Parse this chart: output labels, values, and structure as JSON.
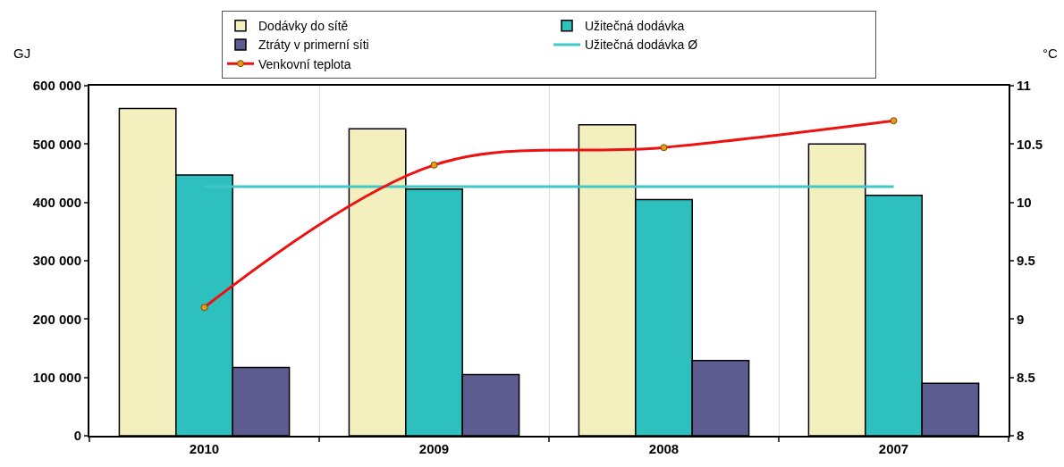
{
  "chart_data": {
    "type": "bar",
    "ylabel": "GJ",
    "y2label": "°C",
    "categories": [
      "2010",
      "2009",
      "2008",
      "2007"
    ],
    "series": [
      {
        "name": "Dodávky do sítě",
        "color": "#f3efbe",
        "values": [
          561000,
          526000,
          533000,
          500000
        ]
      },
      {
        "name": "Užitečná dodávka",
        "color": "#2ebfbf",
        "values": [
          447000,
          423000,
          405000,
          412000
        ]
      },
      {
        "name": "Ztráty v primerní síti",
        "color": "#5c5c90",
        "values": [
          117000,
          105000,
          129000,
          90000
        ]
      },
      {
        "name": "Užitečná dodávka Ø",
        "type": "line",
        "color": "#40c8c8",
        "marker": "none",
        "values": [
          427000,
          427000,
          427000,
          427000
        ]
      },
      {
        "name": "Venkovní teplota",
        "type": "line",
        "axis": "y2",
        "color": "#ee1111",
        "marker": "circle",
        "values": [
          9.1,
          10.32,
          10.47,
          10.7
        ]
      }
    ],
    "ylim": [
      0,
      600000
    ],
    "yticks": [
      0,
      {
        "value": 100000,
        "label": "100 000"
      },
      {
        "value": 200000,
        "label": "200 000"
      },
      {
        "value": 300000,
        "label": "300 000"
      },
      {
        "value": 400000,
        "label": "400 000"
      },
      {
        "value": 500000,
        "label": "500 000"
      },
      {
        "value": 600000,
        "label": "600 000"
      }
    ],
    "y2lim": [
      8,
      11
    ],
    "y2ticks": [
      8,
      8.5,
      9,
      9.5,
      10,
      10.5,
      11
    ],
    "grid": "x",
    "legend": "top"
  }
}
